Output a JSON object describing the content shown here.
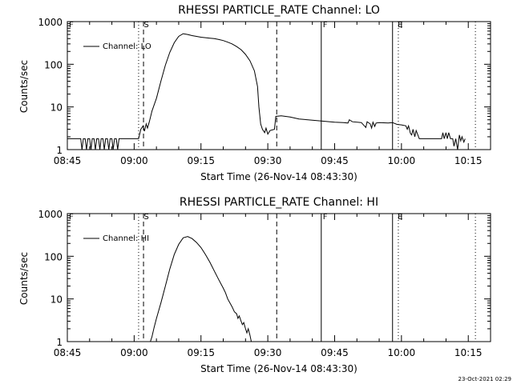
{
  "footer": {
    "timestamp": "23-Oct-2021 02:29"
  },
  "chart_data": [
    {
      "type": "line",
      "title": "RHESSI PARTICLE_RATE Channel: LO",
      "xlabel": "Start Time (26-Nov-14 08:43:30)",
      "ylabel": "Counts/sec",
      "yscale": "log",
      "ylim": [
        1,
        1000
      ],
      "xlim_minutes_from_0845": [
        0,
        95
      ],
      "x_ticks": [
        "08:45",
        "09:00",
        "09:15",
        "09:30",
        "09:45",
        "10:00",
        "10:15"
      ],
      "y_ticks": [
        "1",
        "10",
        "100",
        "1000"
      ],
      "legend": {
        "entries": [
          "Channel: LO"
        ],
        "position": "top-left"
      },
      "series": [
        {
          "name": "Channel: LO",
          "color": "#000000",
          "points": [
            [
              0,
              1.8
            ],
            [
              3,
              1.8
            ],
            [
              3.3,
              1
            ],
            [
              3.6,
              1.8
            ],
            [
              4,
              1.8
            ],
            [
              4.3,
              1
            ],
            [
              4.6,
              1.8
            ],
            [
              5,
              1.8
            ],
            [
              5.3,
              1
            ],
            [
              5.6,
              1.8
            ],
            [
              6,
              1.8
            ],
            [
              6.3,
              1
            ],
            [
              6.6,
              1.8
            ],
            [
              7,
              1.8
            ],
            [
              7.3,
              1
            ],
            [
              7.6,
              1.8
            ],
            [
              8,
              1.8
            ],
            [
              8.3,
              1
            ],
            [
              8.6,
              1.8
            ],
            [
              9,
              1.8
            ],
            [
              9.3,
              1
            ],
            [
              9.6,
              1.8
            ],
            [
              10,
              1.8
            ],
            [
              10.3,
              1
            ],
            [
              10.6,
              1.8
            ],
            [
              11,
              1.8
            ],
            [
              11.3,
              1
            ],
            [
              11.6,
              1.8
            ],
            [
              16,
              1.8
            ],
            [
              16.5,
              3
            ],
            [
              17,
              3.6
            ],
            [
              17.3,
              2.7
            ],
            [
              17.7,
              4
            ],
            [
              18,
              3.2
            ],
            [
              18.4,
              4.5
            ],
            [
              19,
              8
            ],
            [
              20,
              16
            ],
            [
              21,
              40
            ],
            [
              22,
              95
            ],
            [
              23,
              190
            ],
            [
              24,
              320
            ],
            [
              25,
              450
            ],
            [
              26,
              520
            ],
            [
              27,
              500
            ],
            [
              28,
              470
            ],
            [
              29,
              450
            ],
            [
              30,
              430
            ],
            [
              31,
              420
            ],
            [
              32,
              410
            ],
            [
              33,
              400
            ],
            [
              34,
              380
            ],
            [
              35,
              360
            ],
            [
              36,
              330
            ],
            [
              37,
              300
            ],
            [
              38,
              260
            ],
            [
              39,
              220
            ],
            [
              40,
              170
            ],
            [
              41,
              120
            ],
            [
              42,
              70
            ],
            [
              42.7,
              30
            ],
            [
              43,
              10
            ],
            [
              43.4,
              4
            ],
            [
              43.8,
              3
            ],
            [
              44.3,
              2.5
            ],
            [
              44.6,
              3.2
            ],
            [
              45,
              2.3
            ],
            [
              45.5,
              2.8
            ],
            [
              46.5,
              3
            ],
            [
              46.8,
              6
            ],
            [
              48,
              6.2
            ],
            [
              50,
              5.8
            ],
            [
              52,
              5.2
            ],
            [
              54,
              5
            ],
            [
              56,
              4.8
            ],
            [
              58,
              4.6
            ],
            [
              60,
              4.4
            ],
            [
              62,
              4.3
            ],
            [
              63,
              4.2
            ],
            [
              63.3,
              5
            ],
            [
              64,
              4.5
            ],
            [
              66,
              4.3
            ],
            [
              67,
              3.3
            ],
            [
              67.3,
              4.5
            ],
            [
              68,
              4
            ],
            [
              68.3,
              3.2
            ],
            [
              68.6,
              4.4
            ],
            [
              69,
              3.5
            ],
            [
              69.3,
              4.2
            ],
            [
              70,
              4.3
            ],
            [
              72,
              4.2
            ],
            [
              73,
              4.3
            ],
            [
              74,
              3.9
            ],
            [
              75,
              3.8
            ],
            [
              76,
              3.6
            ],
            [
              76.3,
              3
            ],
            [
              76.6,
              3.6
            ],
            [
              77,
              2.4
            ],
            [
              77.3,
              2.2
            ],
            [
              77.6,
              3
            ],
            [
              78,
              2
            ],
            [
              78.3,
              2.8
            ],
            [
              79,
              1.8
            ],
            [
              80,
              1.8
            ],
            [
              84,
              1.8
            ],
            [
              84.3,
              2.5
            ],
            [
              84.6,
              1.8
            ],
            [
              85,
              2.5
            ],
            [
              85.3,
              1.8
            ],
            [
              85.6,
              2.5
            ],
            [
              86,
              1.8
            ],
            [
              86.5,
              1.8
            ],
            [
              86.8,
              1.2
            ],
            [
              87.2,
              1.8
            ],
            [
              87.6,
              1
            ],
            [
              88,
              2.2
            ],
            [
              88.3,
              1.6
            ],
            [
              88.6,
              2
            ],
            [
              89,
              1.5
            ],
            [
              89.3,
              1.8
            ]
          ]
        }
      ],
      "annotations": [
        {
          "label": "F",
          "x": -1.5,
          "style": "solid-label"
        },
        {
          "label": "S",
          "x": 16.8,
          "style": "label"
        },
        {
          "label": "F",
          "x": 57.0,
          "style": "label"
        },
        {
          "label": "E",
          "x": 73.8,
          "style": "label"
        }
      ],
      "vertical_lines": [
        {
          "x": 16.0,
          "style": "dotted"
        },
        {
          "x": 17.1,
          "style": "dashed"
        },
        {
          "x": 47.0,
          "style": "dashed"
        },
        {
          "x": 57.0,
          "style": "solid"
        },
        {
          "x": 73.0,
          "style": "solid"
        },
        {
          "x": 74.3,
          "style": "dotted"
        },
        {
          "x": 91.6,
          "style": "dotted"
        }
      ]
    },
    {
      "type": "line",
      "title": "RHESSI PARTICLE_RATE Channel: HI",
      "xlabel": "Start Time (26-Nov-14 08:43:30)",
      "ylabel": "Counts/sec",
      "yscale": "log",
      "ylim": [
        1,
        1000
      ],
      "xlim_minutes_from_0845": [
        0,
        95
      ],
      "x_ticks": [
        "08:45",
        "09:00",
        "09:15",
        "09:30",
        "09:45",
        "10:00",
        "10:15"
      ],
      "y_ticks": [
        "1",
        "10",
        "100",
        "1000"
      ],
      "legend": {
        "entries": [
          "Channel: HI"
        ],
        "position": "top-left"
      },
      "series": [
        {
          "name": "Channel: HI",
          "color": "#000000",
          "points": [
            [
              18.5,
              0.8
            ],
            [
              19,
              1.3
            ],
            [
              19.5,
              2.2
            ],
            [
              20,
              3.5
            ],
            [
              21,
              8
            ],
            [
              22,
              20
            ],
            [
              23,
              50
            ],
            [
              24,
              110
            ],
            [
              25,
              190
            ],
            [
              26,
              270
            ],
            [
              27,
              290
            ],
            [
              28,
              260
            ],
            [
              29,
              210
            ],
            [
              30,
              160
            ],
            [
              31,
              110
            ],
            [
              32,
              72
            ],
            [
              33,
              45
            ],
            [
              34,
              28
            ],
            [
              35,
              18
            ],
            [
              35.5,
              14
            ],
            [
              36,
              10
            ],
            [
              36.5,
              8
            ],
            [
              37,
              6.5
            ],
            [
              37.5,
              5
            ],
            [
              38,
              4.5
            ],
            [
              38.3,
              3.5
            ],
            [
              38.6,
              4
            ],
            [
              39,
              3
            ],
            [
              39.3,
              2.5
            ],
            [
              39.6,
              2.8
            ],
            [
              40,
              2
            ],
            [
              40.3,
              1.6
            ],
            [
              40.6,
              2
            ],
            [
              41,
              1.4
            ],
            [
              41.3,
              1
            ],
            [
              41.6,
              0.8
            ]
          ]
        }
      ],
      "annotations": [
        {
          "label": "F",
          "x": -1.5,
          "style": "solid-label"
        },
        {
          "label": "S",
          "x": 16.8,
          "style": "label"
        },
        {
          "label": "F",
          "x": 57.0,
          "style": "label"
        },
        {
          "label": "E",
          "x": 73.8,
          "style": "label"
        }
      ],
      "vertical_lines": [
        {
          "x": 16.0,
          "style": "dotted"
        },
        {
          "x": 17.1,
          "style": "dashed"
        },
        {
          "x": 47.0,
          "style": "dashed"
        },
        {
          "x": 57.0,
          "style": "solid"
        },
        {
          "x": 73.0,
          "style": "solid"
        },
        {
          "x": 74.3,
          "style": "dotted"
        },
        {
          "x": 91.6,
          "style": "dotted"
        }
      ]
    }
  ]
}
